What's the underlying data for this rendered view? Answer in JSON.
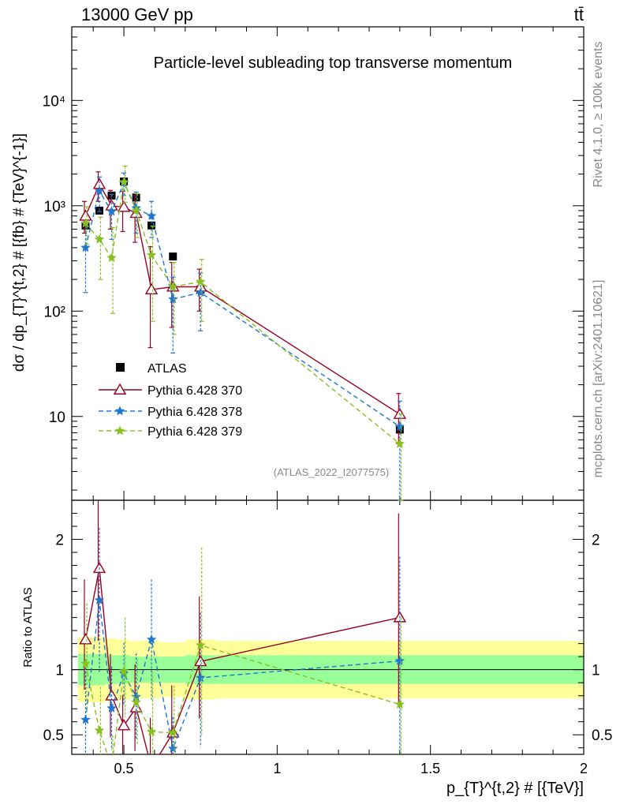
{
  "header": {
    "left": "13000 GeV pp",
    "right": "tt̄"
  },
  "side_labels": {
    "rivet": "Rivet 4.1.0, ≥ 100k events",
    "mcplots": "mcplots.cern.ch [arXiv:2401.10621]"
  },
  "chart_data": {
    "type": "scatter",
    "title": "Particle-level subleading top transverse momentum",
    "watermark": "(ATLAS_2022_I2077575)",
    "xlabel": "p_{T}^{t,2} # [{TeV}]",
    "ylabel": "dσ / dp_{T}^{t,2} # [{fb} # {TeV}^{-1}]",
    "ratio_ylabel": "Ratio to ATLAS",
    "xlim": [
      0.33,
      2.0
    ],
    "ylim": [
      1.6,
      50000
    ],
    "yscale": "log",
    "ratio_ylim": [
      0.35,
      2.3
    ],
    "x_ticks": [
      {
        "v": 0.5,
        "label": "0.5"
      },
      {
        "v": 1.0,
        "label": "1"
      },
      {
        "v": 1.5,
        "label": "1.5"
      },
      {
        "v": 2.0,
        "label": "2"
      }
    ],
    "y_ticks": [
      {
        "v": 10,
        "label": "10"
      },
      {
        "v": 100,
        "label": "10²"
      },
      {
        "v": 1000,
        "label": "10³"
      },
      {
        "v": 10000,
        "label": "10⁴"
      }
    ],
    "ratio_ticks": [
      {
        "v": 0.5,
        "label": "0.5"
      },
      {
        "v": 1.0,
        "label": "1"
      },
      {
        "v": 2.0,
        "label": "2"
      }
    ],
    "legend_position": "middle-left",
    "bins": [
      {
        "lo": 0.35,
        "hi": 0.4
      },
      {
        "lo": 0.4,
        "hi": 0.44
      },
      {
        "lo": 0.44,
        "hi": 0.48
      },
      {
        "lo": 0.48,
        "hi": 0.52
      },
      {
        "lo": 0.52,
        "hi": 0.56
      },
      {
        "lo": 0.56,
        "hi": 0.62
      },
      {
        "lo": 0.62,
        "hi": 0.7
      },
      {
        "lo": 0.7,
        "hi": 0.8
      },
      {
        "lo": 0.8,
        "hi": 2.0
      }
    ],
    "x": [
      0.375,
      0.42,
      0.46,
      0.5,
      0.54,
      0.59,
      0.66,
      0.75,
      1.4
    ],
    "data": {
      "name": "ATLAS",
      "values": [
        650,
        900,
        1250,
        1700,
        1200,
        650,
        330,
        160,
        7.5
      ],
      "band_inner": [
        0.12,
        0.12,
        0.11,
        0.11,
        0.1,
        0.1,
        0.1,
        0.11,
        0.11
      ],
      "band_outer": [
        0.25,
        0.25,
        0.24,
        0.23,
        0.22,
        0.22,
        0.21,
        0.23,
        0.22
      ]
    },
    "series": [
      {
        "name": "Pythia 6.428 370",
        "color": "#990022",
        "marker": "triangle-open",
        "dash": "",
        "values": [
          800,
          1600,
          1000,
          970,
          850,
          160,
          170,
          170,
          10.5
        ],
        "err_up": [
          300,
          500,
          400,
          400,
          400,
          250,
          120,
          80,
          6
        ],
        "err_dn": [
          250,
          500,
          400,
          400,
          400,
          115,
          100,
          70,
          5
        ]
      },
      {
        "name": "Pythia 6.428 378",
        "color": "#1f77d0",
        "marker": "star",
        "dash": "6,4",
        "values": [
          400,
          1380,
          880,
          1650,
          950,
          800,
          130,
          150,
          8
        ],
        "err_up": [
          300,
          500,
          400,
          400,
          400,
          300,
          80,
          80,
          6
        ],
        "err_dn": [
          250,
          500,
          400,
          400,
          400,
          300,
          90,
          85,
          7.5
        ]
      },
      {
        "name": "Pythia 6.428 379",
        "color": "#88c020",
        "marker": "star",
        "dash": "6,4",
        "values": [
          680,
          480,
          320,
          1680,
          900,
          340,
          170,
          190,
          5.5
        ],
        "err_up": [
          300,
          300,
          300,
          700,
          400,
          300,
          120,
          120,
          5
        ],
        "err_dn": [
          250,
          280,
          225,
          600,
          400,
          260,
          110,
          110,
          5.4
        ]
      }
    ]
  }
}
